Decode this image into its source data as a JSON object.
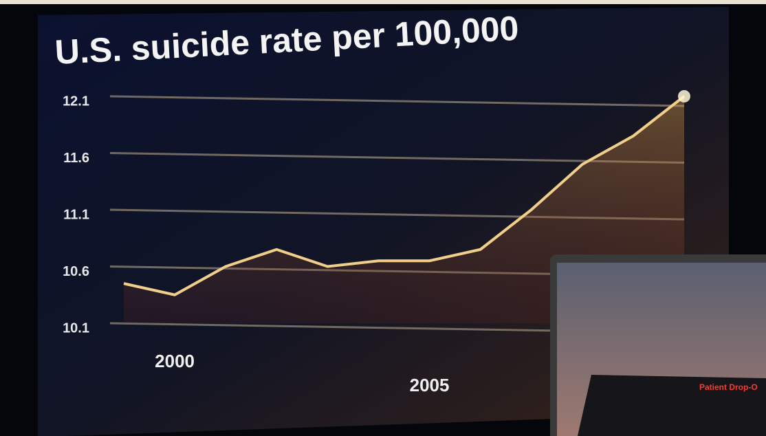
{
  "chart_data": {
    "type": "line",
    "title": "U.S. suicide rate per 100,000",
    "categories": [
      null,
      "2000",
      null,
      null,
      null,
      null,
      "2005",
      null,
      null,
      null,
      null,
      null
    ],
    "series": [
      {
        "name": null,
        "color": "#f0cf8a",
        "values": [
          10.45,
          10.35,
          10.6,
          10.75,
          10.6,
          10.65,
          10.65,
          10.75,
          11.1,
          11.5,
          11.75,
          12.1
        ]
      }
    ],
    "ylim": [
      10.1,
      12.1
    ],
    "yticks": [
      10.1,
      10.6,
      11.1,
      11.6,
      12.1
    ],
    "grid": true
  },
  "inset": {
    "sign": "Patient Drop-O"
  }
}
